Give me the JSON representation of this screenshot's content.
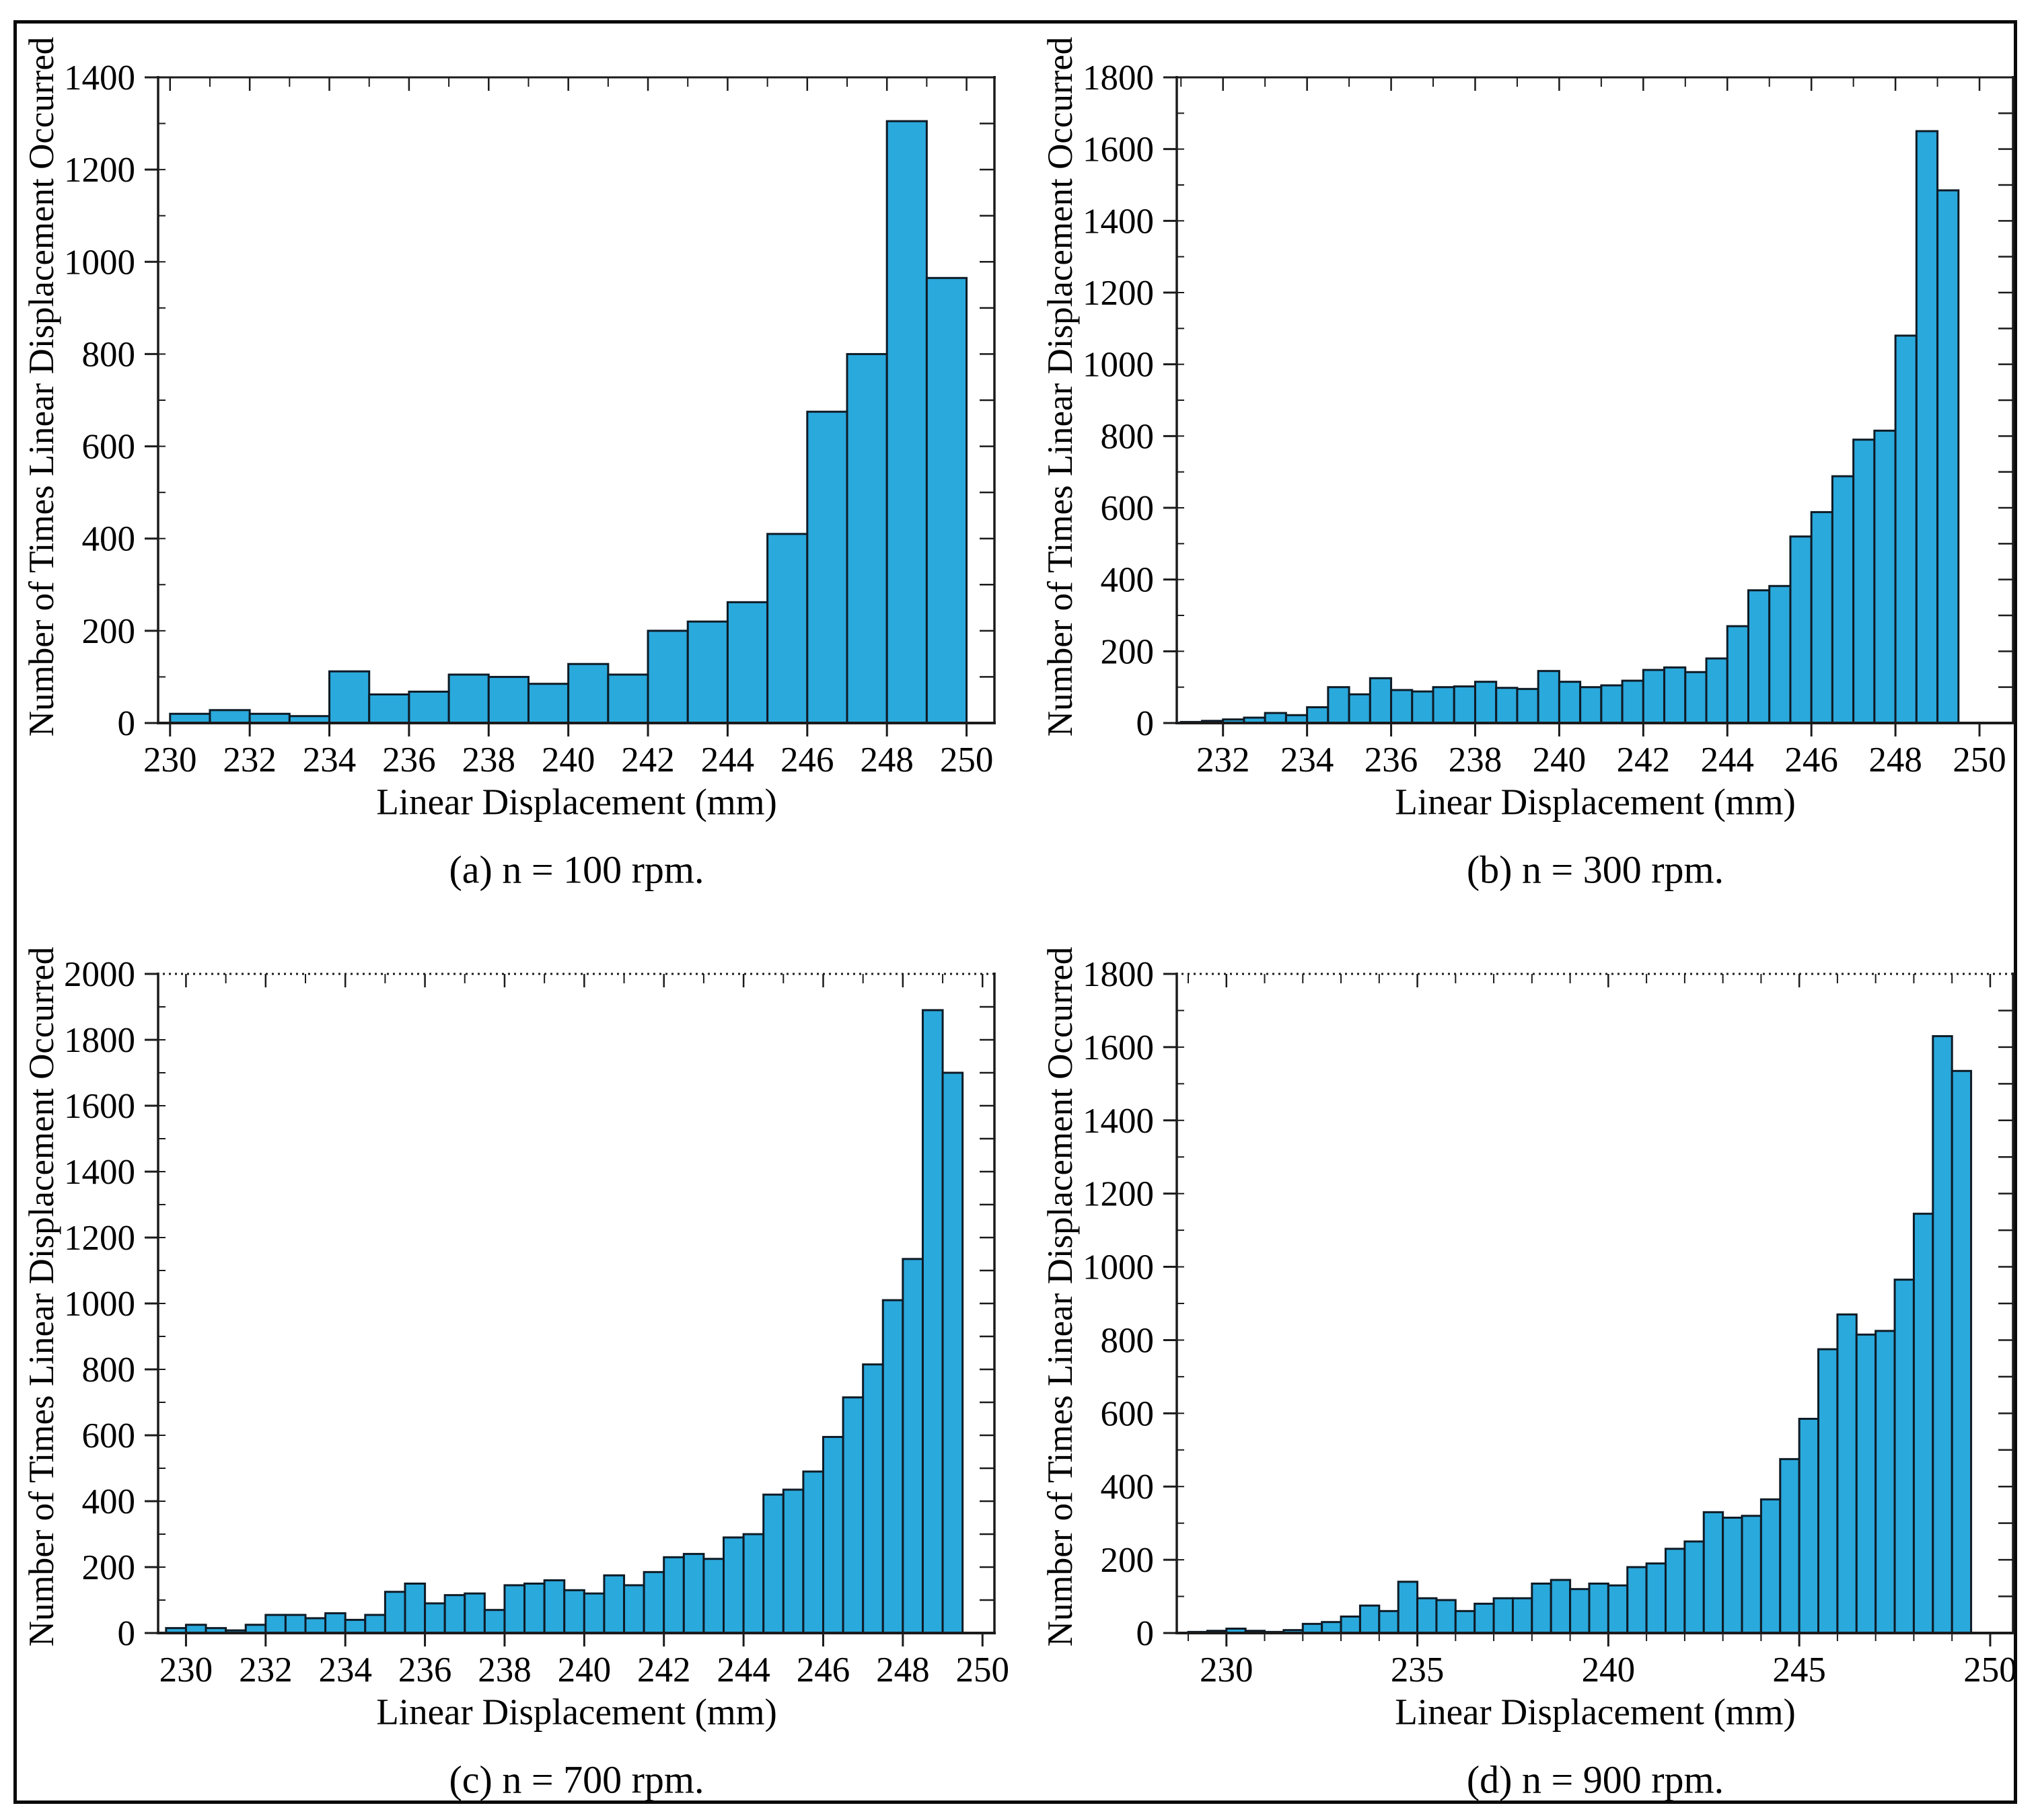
{
  "figure": {
    "background": "#ffffff",
    "border_color": "#0a0a0a",
    "bar_fill": "#2AA9DC",
    "bar_edge": "#0E1B26",
    "axis_color": "#1b1b1b",
    "text_color": "#000000"
  },
  "chart_data": [
    {
      "id": "a",
      "type": "bar",
      "caption": "(a) n = 100 rpm.",
      "xlabel": "Linear Displacement (mm)",
      "ylabel": "Number of Times Linear Displacement Occurred",
      "bin_start": 230,
      "bin_width": 1,
      "values": [
        20,
        28,
        20,
        15,
        112,
        62,
        68,
        105,
        100,
        85,
        128,
        105,
        200,
        220,
        262,
        410,
        675,
        800,
        1305,
        965
      ],
      "xlim": [
        229.7,
        250.7
      ],
      "ylim": [
        0,
        1400
      ],
      "xticks": [
        230,
        232,
        234,
        236,
        238,
        240,
        242,
        244,
        246,
        248,
        250
      ],
      "yticks": [
        0,
        200,
        400,
        600,
        800,
        1000,
        1200,
        1400
      ],
      "ytick_minor": 100,
      "xtick_minor": 1,
      "top_spine": "solid",
      "bottom_minor_ticks": false,
      "grid": "off",
      "legend": "none"
    },
    {
      "id": "b",
      "type": "bar",
      "caption": "(b) n = 300 rpm.",
      "xlabel": "Linear Displacement (mm)",
      "ylabel": "Number of Times Linear Displacement Occurred",
      "bin_start": 231,
      "bin_width": 0.5,
      "values": [
        3,
        6,
        10,
        15,
        28,
        22,
        44,
        100,
        80,
        125,
        92,
        88,
        100,
        102,
        115,
        98,
        95,
        145,
        115,
        100,
        105,
        118,
        148,
        155,
        142,
        180,
        270,
        370,
        382,
        520,
        588,
        688,
        790,
        815,
        1080,
        1650,
        1485
      ],
      "xlim": [
        230.9,
        250.8
      ],
      "ylim": [
        0,
        1800
      ],
      "xticks": [
        232,
        234,
        236,
        238,
        240,
        242,
        244,
        246,
        248,
        250
      ],
      "yticks": [
        0,
        200,
        400,
        600,
        800,
        1000,
        1200,
        1400,
        1600,
        1800
      ],
      "ytick_minor": 100,
      "xtick_minor": 1,
      "top_spine": "solid",
      "bottom_minor_ticks": false,
      "grid": "off",
      "legend": "none"
    },
    {
      "id": "c",
      "type": "bar",
      "caption": "(c) n = 700 rpm.",
      "xlabel": "Linear Displacement (mm)",
      "ylabel": "Number of Times Linear Displacement Occurred",
      "bin_start": 229.5,
      "bin_width": 0.5,
      "values": [
        15,
        25,
        15,
        8,
        25,
        55,
        55,
        45,
        60,
        40,
        55,
        125,
        150,
        90,
        115,
        120,
        70,
        145,
        150,
        160,
        130,
        120,
        175,
        145,
        185,
        230,
        240,
        225,
        290,
        300,
        420,
        435,
        490,
        595,
        715,
        815,
        1010,
        1135,
        1890,
        1700
      ],
      "xlim": [
        229.3,
        250.3
      ],
      "ylim": [
        0,
        2000
      ],
      "xticks": [
        230,
        232,
        234,
        236,
        238,
        240,
        242,
        244,
        246,
        248,
        250
      ],
      "yticks": [
        0,
        200,
        400,
        600,
        800,
        1000,
        1200,
        1400,
        1600,
        1800,
        2000
      ],
      "ytick_minor": 100,
      "xtick_minor": 1,
      "top_spine": "dotted",
      "bottom_minor_ticks": false,
      "grid": "off",
      "legend": "none"
    },
    {
      "id": "d",
      "type": "bar",
      "caption": "(d) n = 900 rpm.",
      "xlabel": "Linear Displacement (mm)",
      "ylabel": "Number of Times Linear Displacement Occurred",
      "bin_start": 229,
      "bin_width": 0.5,
      "values": [
        3,
        6,
        12,
        6,
        3,
        8,
        25,
        30,
        45,
        75,
        60,
        140,
        95,
        90,
        60,
        80,
        95,
        95,
        135,
        145,
        120,
        135,
        130,
        180,
        190,
        230,
        250,
        330,
        315,
        320,
        365,
        475,
        585,
        775,
        870,
        815,
        825,
        965,
        1145,
        1630,
        1535
      ],
      "xlim": [
        228.7,
        250.6
      ],
      "ylim": [
        0,
        1800
      ],
      "xticks": [
        230,
        235,
        240,
        245,
        250
      ],
      "yticks": [
        0,
        200,
        400,
        600,
        800,
        1000,
        1200,
        1400,
        1600,
        1800
      ],
      "ytick_minor": 100,
      "xtick_minor": 1,
      "top_spine": "dotted",
      "bottom_minor_ticks": true,
      "grid": "off",
      "legend": "none"
    }
  ]
}
